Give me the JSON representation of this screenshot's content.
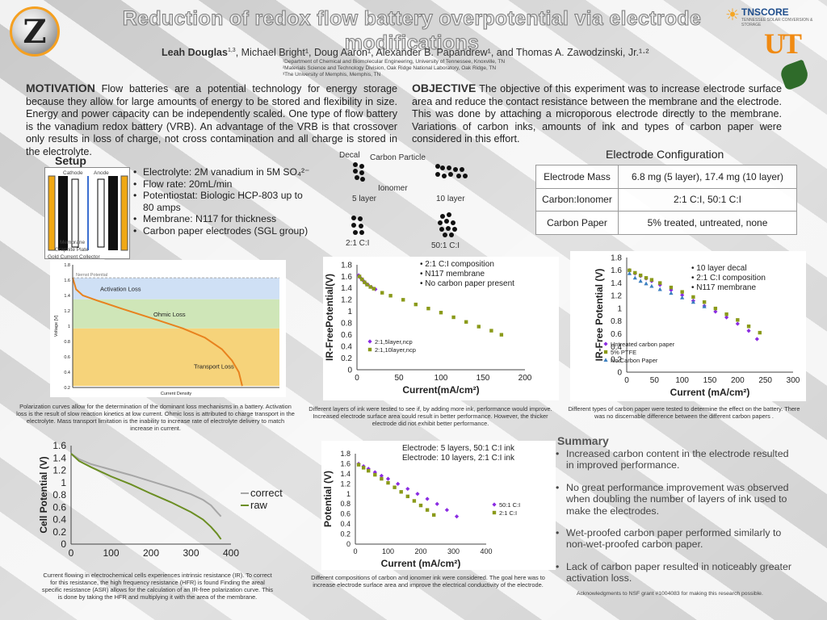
{
  "header": {
    "title": "Reduction of redox flow battery overpotential via electrode modifications",
    "authors_lead": "Leah Douglas",
    "authors_lead_sup": "1,3",
    "authors_rest": ", Michael Bright¹, Doug Aaron¹, Alexander B. Papandrew¹, and Thomas A. Zawodzinski, Jr.¹·²",
    "affiliations": [
      "¹Department of Chemical and Biomolecular Engineering, University of Tennessee, Knoxville, TN",
      "²Materials Science and Technology Division, Oak Ridge National Laboratory, Oak Ridge, TN",
      "³The University of Memphis, Memphis, TN"
    ],
    "logo_left_letter": "Z",
    "logo_tnscore": "TNSCORE",
    "logo_tnscore_sub": "TENNESSEE SOLAR CONVERSION & STORAGE",
    "logo_ut": "UT"
  },
  "motivation": {
    "heading": "MOTIVATION",
    "text": "Flow batteries are a potential technology for energy storage because they allow for large amounts of energy to be stored and flexibility in size. Energy and power capacity can be independently scaled. One type of flow battery is the vanadium redox battery (VRB). An advantage of the VRB is that crossover only results in loss of charge, not cross contamination and all charge is stored in the electrolyte."
  },
  "objective": {
    "heading": "OBJECTIVE",
    "text": "The objective of this experiment was to increase electrode surface area and reduce the contact resistance between the membrane and the electrode. This was done by attaching a microporous electrode directly to the membrane. Variations of carbon inks, amounts of ink and types of carbon paper were considered in this effort."
  },
  "setup": {
    "heading": "Setup",
    "diagram_labels": {
      "cathode": "Cathode",
      "anode": "Anode",
      "membrane": "Membrane",
      "graphite": "Graphite Plate",
      "collector": "Gold Current Collector"
    },
    "bullets": [
      "Electrolyte: 2M vanadium in 5M SO₄²⁻",
      "Flow rate: 20mL/min",
      "Potentiostat: Biologic HCP-803 up to 80 amps",
      "Membrane: N117 for thickness",
      "Carbon paper electrodes (SGL group)"
    ]
  },
  "ink_diagram": {
    "labels": {
      "decal": "Decal",
      "carbon_particle": "Carbon Particle",
      "ionomer": "Ionomer",
      "five_layer": "5 layer",
      "ten_layer": "10 layer",
      "ratio_2": "2:1 C:I",
      "ratio_50": "50:1 C:I"
    }
  },
  "electrode_config": {
    "title": "Electrode Configuration",
    "rows": [
      {
        "label": "Electrode Mass",
        "value": "6.8 mg (5 layer),  17.4 mg (10 layer)"
      },
      {
        "label": "Carbon:Ionomer",
        "value": "2:1 C:I, 50:1 C:I"
      },
      {
        "label": "Carbon Paper",
        "value": "5% treated, untreated, none"
      }
    ]
  },
  "captions": {
    "polarization": "Polarization curves allow for the determination of the dominant loss mechanisms in a battery. Activation loss is the result of slow reaction kinetics at low current. Ohmic loss is attributed to charge transport in the electrolyte.  Mass transport limitation is the inability to increase rate of electrolyte delivery to match increase in current.",
    "cell": "Current flowing in electrochemical cells experiences intrinsic resistance (IR). To correct for this resistance, the high frequency resistance (HFR) is found Finding the areal specific resistance (ASR) allows for the calculation of an IR-free polarization curve. This is done by taking the HFR and multiplying it with the area of the membrane.",
    "ir1": "Different layers of ink were tested to see if, by adding more ink, performance would improve. Increased electrode surface area could result in better performance. However, the thicker electrode did not exhibit better performance.",
    "potential": "Different compositions of carbon and ionomer ink were considered.  The goal here was to increase electrode surface area and improve the electrical conductivity of the electrode.",
    "ir2": "Different types of carbon paper were tested to determine the effect on the battery. There was no discernable difference between the different carbon papers ."
  },
  "summary": {
    "heading": "Summary",
    "items": [
      "Increased carbon content in the electrode resulted in improved performance.",
      "No great performance improvement was observed when doubling the number of layers of ink used to make the electrodes.",
      "Wet-proofed carbon paper performed similarly to non-wet-proofed carbon paper.",
      "Lack of carbon paper resulted in noticeably greater activation loss."
    ],
    "acknowledgement": "Acknowledgments to NSF grant #1004083 for making this research possible."
  },
  "chart_data": [
    {
      "id": "polarization",
      "type": "area",
      "xlabel": "Current Density",
      "ylabel": "Voltage [V]",
      "ylim": [
        0.2,
        1.8
      ],
      "yticks": [
        "1.8",
        "1.6",
        "1.4",
        "1.2",
        "1",
        "0.8",
        "0.6",
        "0.4",
        "0.2"
      ],
      "regions": [
        {
          "name": "Nernst Potential",
          "y": 1.63
        },
        {
          "name": "Activation Loss",
          "y_top": 1.63,
          "y_bottom": 1.35,
          "color": "#cfe0f5"
        },
        {
          "name": "Ohmic Loss",
          "y_top": 1.35,
          "y_bottom": 0.97,
          "color": "#cfe6b8"
        },
        {
          "name": "Transport Loss",
          "y_top": 0.97,
          "y_bottom": 0.22,
          "color": "#f6d37a"
        }
      ],
      "series": [
        {
          "x": [
            0,
            0.02,
            0.06,
            0.15,
            0.3,
            0.5,
            0.65,
            0.78,
            0.88,
            0.94,
            0.98,
            1.0
          ],
          "values": [
            1.63,
            1.48,
            1.4,
            1.33,
            1.22,
            1.08,
            0.97,
            0.85,
            0.7,
            0.55,
            0.4,
            0.22
          ]
        }
      ]
    },
    {
      "id": "cell",
      "type": "line",
      "xlabel": "",
      "ylabel": "Cell Potential (V)",
      "xlim": [
        0,
        400
      ],
      "ylim": [
        0,
        1.6
      ],
      "xticks": [
        "0",
        "100",
        "200",
        "300",
        "400"
      ],
      "yticks": [
        "1.6",
        "1.4",
        "1.2",
        "1",
        "0.8",
        "0.6",
        "0.4",
        "0.2",
        "0"
      ],
      "series": [
        {
          "name": "correct",
          "color": "#a6a6a6",
          "x": [
            0,
            20,
            50,
            100,
            150,
            200,
            250,
            300,
            330,
            350,
            365,
            375
          ],
          "values": [
            1.47,
            1.38,
            1.3,
            1.21,
            1.12,
            1.02,
            0.92,
            0.81,
            0.72,
            0.63,
            0.52,
            0.45
          ]
        },
        {
          "name": "raw",
          "color": "#6b8e23",
          "x": [
            0,
            20,
            50,
            100,
            150,
            200,
            250,
            300,
            330,
            350,
            365,
            375
          ],
          "values": [
            1.47,
            1.35,
            1.25,
            1.1,
            0.97,
            0.82,
            0.68,
            0.52,
            0.4,
            0.28,
            0.17,
            0.08
          ]
        }
      ]
    },
    {
      "id": "ir1",
      "type": "scatter",
      "xlabel": "Current(mA/cm²)",
      "ylabel": "IR-FreePotential(V)",
      "xlim": [
        0,
        200
      ],
      "ylim": [
        0,
        1.8
      ],
      "xticks": [
        "0",
        "50",
        "100",
        "150",
        "200"
      ],
      "yticks": [
        "1.8",
        "1.6",
        "1.4",
        "1.2",
        "1",
        "0.8",
        "0.6",
        "0.4",
        "0.2",
        "0"
      ],
      "notes": [
        "2:1 C:I composition",
        "N117 membrane",
        "No carbon paper present"
      ],
      "series": [
        {
          "name": "2:1,5layer,ncp",
          "color": "#8a2be2",
          "marker": "diamond",
          "x": [
            2,
            4,
            6,
            8,
            10,
            13,
            17,
            22
          ],
          "values": [
            1.62,
            1.58,
            1.55,
            1.52,
            1.49,
            1.46,
            1.42,
            1.38
          ]
        },
        {
          "name": "2:1,10layer,ncp",
          "color": "#8a9a1a",
          "marker": "square",
          "x": [
            3,
            6,
            9,
            12,
            16,
            20,
            30,
            40,
            55,
            70,
            85,
            100,
            115,
            130,
            145,
            160,
            172
          ],
          "values": [
            1.6,
            1.55,
            1.5,
            1.46,
            1.42,
            1.39,
            1.32,
            1.27,
            1.2,
            1.12,
            1.05,
            0.98,
            0.9,
            0.82,
            0.74,
            0.67,
            0.6
          ]
        }
      ]
    },
    {
      "id": "ir2",
      "type": "scatter",
      "xlabel": "Current (mA/cm²)",
      "ylabel": "IR-Free Potential (V)",
      "xlim": [
        0,
        300
      ],
      "ylim": [
        0,
        1.8
      ],
      "xticks": [
        "0",
        "50",
        "100",
        "150",
        "200",
        "250",
        "300"
      ],
      "yticks": [
        "1.8",
        "1.6",
        "1.4",
        "1.2",
        "1",
        "0.8",
        "0.6",
        "0.4",
        "0.2",
        "0"
      ],
      "notes": [
        "10 layer decal",
        "2:1 C:I composition",
        "N117 membrane"
      ],
      "series": [
        {
          "name": "Untreated carbon paper",
          "color": "#8a2be2",
          "marker": "diamond",
          "x": [
            5,
            15,
            25,
            35,
            45,
            60,
            80,
            100,
            120,
            140,
            160,
            180,
            200,
            220,
            235
          ],
          "values": [
            1.6,
            1.55,
            1.51,
            1.47,
            1.43,
            1.37,
            1.29,
            1.21,
            1.12,
            1.04,
            0.95,
            0.86,
            0.76,
            0.65,
            0.52
          ]
        },
        {
          "name": "5% PTFE",
          "color": "#8a9a1a",
          "marker": "square",
          "x": [
            5,
            15,
            25,
            35,
            45,
            60,
            80,
            100,
            120,
            140,
            160,
            180,
            200,
            220,
            240
          ],
          "values": [
            1.6,
            1.56,
            1.52,
            1.48,
            1.45,
            1.4,
            1.33,
            1.26,
            1.18,
            1.1,
            1.0,
            0.91,
            0.82,
            0.72,
            0.62
          ]
        },
        {
          "name": "No Carbon Paper",
          "color": "#3c7fc0",
          "marker": "triangle",
          "x": [
            5,
            15,
            25,
            35,
            45,
            60,
            80,
            100,
            120,
            140
          ],
          "values": [
            1.55,
            1.48,
            1.43,
            1.39,
            1.35,
            1.3,
            1.24,
            1.17,
            1.1,
            1.03
          ]
        }
      ]
    },
    {
      "id": "potential",
      "type": "scatter",
      "xlabel": "Current (mA/cm²)",
      "ylabel": "Potential (V)",
      "xlim": [
        0,
        400
      ],
      "ylim": [
        0,
        1.8
      ],
      "xticks": [
        "0",
        "100",
        "200",
        "300",
        "400"
      ],
      "yticks": [
        "1.8",
        "1.6",
        "1.4",
        "1.2",
        "1",
        "0.8",
        "0.6",
        "0.4",
        "0.2",
        "0"
      ],
      "notes": [
        "Electrode:  5 layers, 50:1 C:I ink",
        "Electrode:  10 layers, 2:1 C:I ink"
      ],
      "series": [
        {
          "name": "50:1 C:I",
          "color": "#8a2be2",
          "marker": "diamond",
          "x": [
            10,
            25,
            40,
            60,
            80,
            100,
            130,
            160,
            190,
            220,
            250,
            280,
            310
          ],
          "values": [
            1.6,
            1.55,
            1.5,
            1.43,
            1.36,
            1.3,
            1.2,
            1.1,
            1.0,
            0.9,
            0.8,
            0.68,
            0.55
          ]
        },
        {
          "name": "2:1 C:I",
          "color": "#8a9a1a",
          "marker": "square",
          "x": [
            10,
            25,
            40,
            60,
            80,
            100,
            120,
            140,
            160,
            180,
            200,
            220,
            240
          ],
          "values": [
            1.58,
            1.52,
            1.46,
            1.38,
            1.3,
            1.22,
            1.13,
            1.04,
            0.95,
            0.86,
            0.77,
            0.68,
            0.58
          ]
        }
      ]
    }
  ]
}
